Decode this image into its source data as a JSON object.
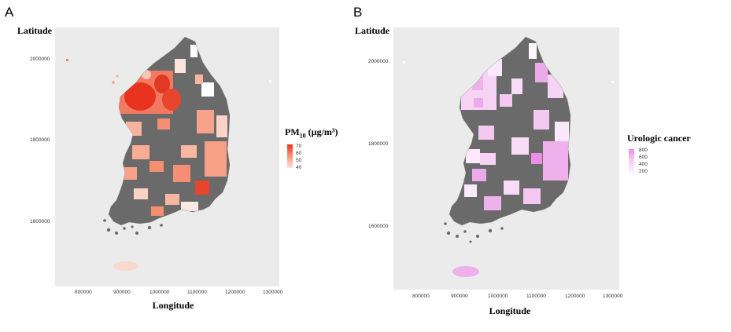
{
  "panel_a": {
    "letter": "A",
    "ylabel": "Latitude",
    "xlabel": "Longitude",
    "xticks": [
      "800000",
      "900000",
      "1000000",
      "1100000",
      "1200000",
      "1300000"
    ],
    "yticks": [
      "2000000",
      "1800000",
      "1600000"
    ],
    "legend_title_main": "PM",
    "legend_title_sub": "10",
    "legend_title_unit": " (µg/m³)",
    "legend_ticks": [
      "70",
      "60",
      "50",
      "40"
    ],
    "colors": {
      "low": "#fbe4dc",
      "high": "#e8331f",
      "na": "#636363"
    }
  },
  "panel_b": {
    "letter": "B",
    "ylabel": "Latitude",
    "xlabel": "Longitude",
    "xticks": [
      "800000",
      "900000",
      "1000000",
      "1100000",
      "1200000",
      "1300000"
    ],
    "yticks": [
      "2000000",
      "1800000",
      "1600000"
    ],
    "legend_title": "Urologic cancer",
    "legend_ticks": [
      "800",
      "600",
      "400",
      "200"
    ],
    "colors": {
      "low": "#fdf3fd",
      "high": "#ea8ee6",
      "na": "#636363"
    }
  }
}
